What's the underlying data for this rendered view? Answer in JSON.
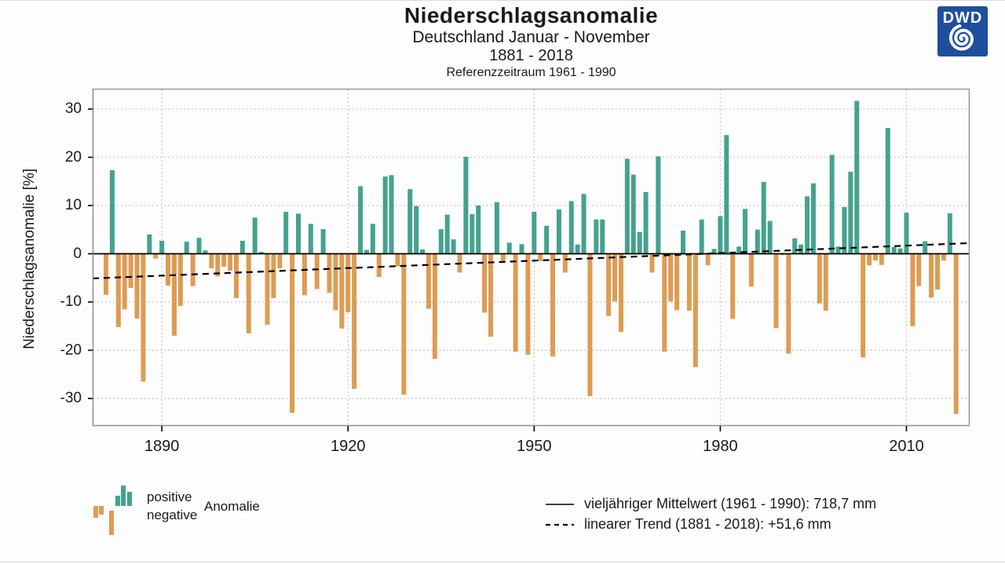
{
  "header": {
    "title": "Niederschlagsanomalie",
    "subtitle1": "Deutschland Januar - November",
    "subtitle2": "1881 - 2018",
    "subtitle3": "Referenzzeitraum 1961 - 1990"
  },
  "logo": {
    "text": "DWD"
  },
  "axes": {
    "y_title": "Niederschlagsanomalie [%]",
    "y_ticks": [
      30,
      20,
      10,
      0,
      -10,
      -20,
      -30
    ],
    "x_ticks": [
      1890,
      1920,
      1950,
      1980,
      2010
    ]
  },
  "legend": {
    "positive_label": "positive",
    "negative_label": "negative",
    "anomalie_label": "Anomalie",
    "mean_line_label": "vieljähriger Mittelwert (1961 - 1990): 718,7 mm",
    "trend_line_label": "linearer Trend (1881 - 2018): +51,6 mm"
  },
  "colors": {
    "positive": "#45a28d",
    "negative": "#dd9c53",
    "logo_blue": "#1d4f9e",
    "grid": "#c8c8c8",
    "frame": "#8e8e8e",
    "axis_line": "#000000"
  },
  "chart_data": {
    "type": "bar",
    "title": "Niederschlagsanomalie",
    "subtitle": "Deutschland Januar - November 1881 - 2018, Referenzzeitraum 1961 - 1990",
    "ylabel": "Niederschlagsanomalie [%]",
    "ylim": [
      -35,
      33
    ],
    "grid": true,
    "start_year": 1881,
    "end_year": 2018,
    "mean_1961_1990_mm": "718,7",
    "linear_trend_mm": "+51,6",
    "trend_line_pct": {
      "start": -5.0,
      "end": 2.1
    },
    "values": [
      -8.5,
      17.3,
      -15.2,
      -11.5,
      -7.1,
      -13.4,
      -26.5,
      4.0,
      -1.0,
      2.7,
      -6.6,
      -17.0,
      -10.8,
      2.5,
      -6.7,
      3.3,
      0.7,
      -3.0,
      -4.7,
      -2.7,
      -3.5,
      -9.2,
      2.7,
      -16.5,
      7.5,
      0.4,
      -14.7,
      -9.2,
      -3.0,
      8.7,
      -33.0,
      8.3,
      -8.6,
      6.2,
      -7.3,
      5.1,
      -8.1,
      -11.7,
      -15.5,
      -12.1,
      -28.0,
      14.0,
      0.8,
      6.2,
      -4.8,
      16.0,
      16.3,
      -2.6,
      -29.2,
      13.4,
      9.9,
      0.9,
      -11.4,
      -21.8,
      5.1,
      8.1,
      3.0,
      -3.9,
      20.1,
      8.2,
      10.0,
      -12.2,
      -17.2,
      10.7,
      -1.5,
      2.3,
      -20.3,
      2.0,
      -20.9,
      8.7,
      -1.5,
      5.8,
      -21.3,
      9.2,
      -3.9,
      10.9,
      1.9,
      12.4,
      -29.5,
      7.1,
      7.1,
      -12.9,
      -9.9,
      -16.2,
      19.7,
      16.4,
      4.5,
      12.8,
      -3.9,
      20.2,
      -20.3,
      -9.9,
      -11.7,
      4.8,
      -11.8,
      -23.5,
      7.1,
      -2.4,
      1.0,
      7.8,
      24.6,
      -13.5,
      1.5,
      9.3,
      -6.8,
      5.0,
      14.9,
      6.8,
      -15.4,
      -0.3,
      -20.7,
      3.2,
      1.9,
      11.9,
      14.6,
      -10.3,
      -11.8,
      20.5,
      1.5,
      9.7,
      17.0,
      31.7,
      -21.5,
      -2.4,
      -1.4,
      -2.3,
      26.1,
      1.4,
      1.1,
      8.5,
      -15.0,
      -6.7,
      2.6,
      -9.1,
      -7.4,
      -1.4,
      8.4,
      -33.2
    ]
  }
}
